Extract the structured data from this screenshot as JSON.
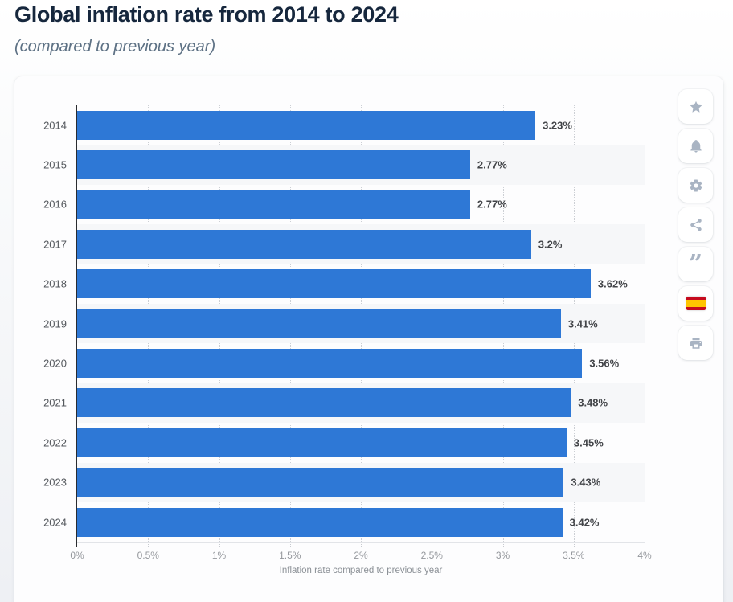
{
  "header": {
    "title": "Global inflation rate from 2014 to 2024",
    "subtitle": "(compared to previous year)"
  },
  "chart_data": {
    "type": "bar",
    "orientation": "horizontal",
    "title": "Global inflation rate from 2014 to 2024",
    "subtitle": "(compared to previous year)",
    "categories": [
      "2014",
      "2015",
      "2016",
      "2017",
      "2018",
      "2019",
      "2020",
      "2021",
      "2022",
      "2023",
      "2024"
    ],
    "values": [
      3.23,
      2.77,
      2.77,
      3.2,
      3.62,
      3.41,
      3.56,
      3.48,
      3.45,
      3.43,
      3.42
    ],
    "value_labels": [
      "3.23%",
      "2.77%",
      "2.77%",
      "3.2%",
      "3.62%",
      "3.41%",
      "3.56%",
      "3.48%",
      "3.45%",
      "3.43%",
      "3.42%"
    ],
    "xlabel": "Inflation rate compared to previous year",
    "ylabel": "",
    "xlim": [
      0,
      4
    ],
    "x_ticks": [
      "0%",
      "0.5%",
      "1%",
      "1.5%",
      "2%",
      "2.5%",
      "3%",
      "3.5%",
      "4%"
    ],
    "grid": "vertical-dotted",
    "legend": "none"
  },
  "colors": {
    "bar": "#2e78d6",
    "band": "#f6f7f9",
    "flag_red": "#c60b1e",
    "flag_yellow": "#ffc400"
  },
  "toolbar": {
    "items": [
      {
        "name": "favorite-button",
        "icon": "star-icon"
      },
      {
        "name": "alerts-button",
        "icon": "bell-icon"
      },
      {
        "name": "settings-button",
        "icon": "gear-icon"
      },
      {
        "name": "share-button",
        "icon": "share-icon"
      },
      {
        "name": "cite-button",
        "icon": "quote-icon"
      },
      {
        "name": "language-button",
        "icon": "spain-flag-icon"
      },
      {
        "name": "print-button",
        "icon": "printer-icon"
      }
    ]
  }
}
